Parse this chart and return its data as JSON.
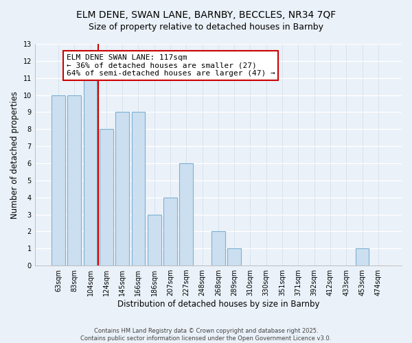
{
  "title_line1": "ELM DENE, SWAN LANE, BARNBY, BECCLES, NR34 7QF",
  "title_line2": "Size of property relative to detached houses in Barnby",
  "xlabel": "Distribution of detached houses by size in Barnby",
  "ylabel": "Number of detached properties",
  "bin_labels": [
    "63sqm",
    "83sqm",
    "104sqm",
    "124sqm",
    "145sqm",
    "166sqm",
    "186sqm",
    "207sqm",
    "227sqm",
    "248sqm",
    "268sqm",
    "289sqm",
    "310sqm",
    "330sqm",
    "351sqm",
    "371sqm",
    "392sqm",
    "412sqm",
    "433sqm",
    "453sqm",
    "474sqm"
  ],
  "bin_counts": [
    10,
    10,
    11,
    8,
    9,
    9,
    3,
    4,
    6,
    0,
    2,
    1,
    0,
    0,
    0,
    0,
    0,
    0,
    0,
    1,
    0
  ],
  "bar_color": "#ccdff0",
  "bar_edge_color": "#7ab0d4",
  "vline_color": "#cc0000",
  "vline_pos": 2.5,
  "annotation_text": "ELM DENE SWAN LANE: 117sqm\n← 36% of detached houses are smaller (27)\n64% of semi-detached houses are larger (47) →",
  "annotation_box_color": "white",
  "annotation_box_edge_color": "#cc0000",
  "ylim": [
    0,
    13
  ],
  "yticks": [
    0,
    1,
    2,
    3,
    4,
    5,
    6,
    7,
    8,
    9,
    10,
    11,
    12,
    13
  ],
  "footer1": "Contains HM Land Registry data © Crown copyright and database right 2025.",
  "footer2": "Contains public sector information licensed under the Open Government Licence v3.0.",
  "bg_color": "#eaf1f8",
  "grid_color": "#d0dce8",
  "title_fontsize": 10,
  "subtitle_fontsize": 9,
  "axis_label_fontsize": 8.5,
  "tick_fontsize": 7,
  "annotation_fontsize": 8,
  "footer_fontsize": 6
}
